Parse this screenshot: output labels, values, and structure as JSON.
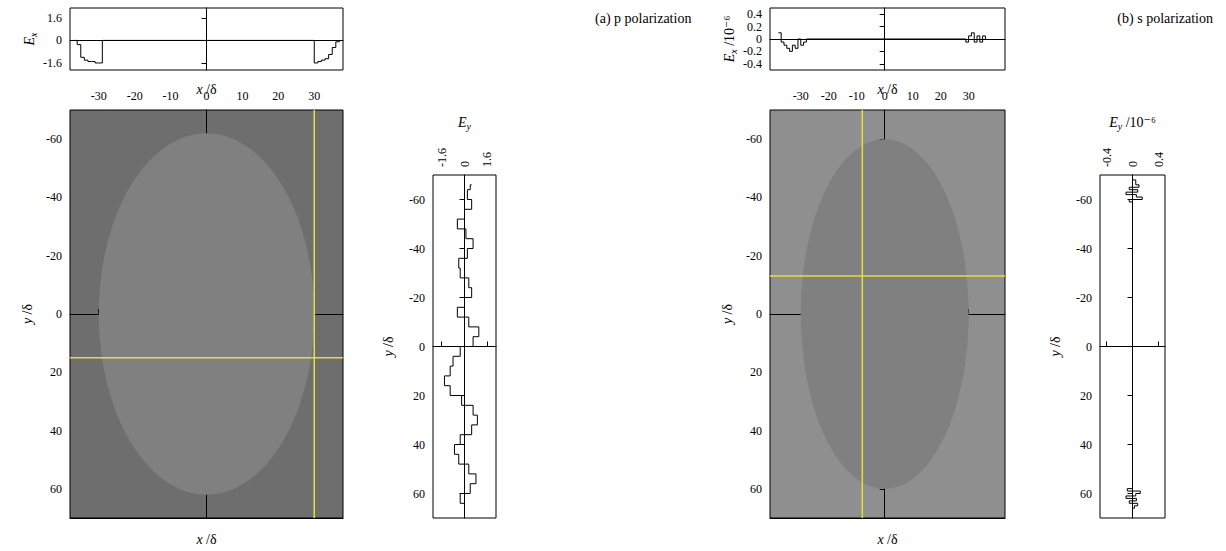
{
  "chart_data": [
    {
      "type": "line",
      "x_label": "x /δ",
      "y_label": "Ex",
      "line_style": "step",
      "tick_labels": "y",
      "x": [
        -37,
        -36,
        -35,
        -34,
        -33,
        -32,
        -31,
        -30,
        -29,
        29,
        30,
        31,
        32,
        33,
        34,
        35,
        36,
        37
      ],
      "values": [
        0,
        -0.3,
        -1.2,
        -1.4,
        -1.5,
        -1.5,
        -1.6,
        -1.6,
        0,
        0,
        -1.6,
        -1.5,
        -1.4,
        -1.3,
        -1.0,
        -0.5,
        -0.1,
        0
      ],
      "xlim": [
        -38,
        38
      ],
      "ylim": [
        -2.1,
        2.3
      ],
      "yticks": [
        -1.6,
        0,
        1.6
      ]
    },
    {
      "type": "field_map",
      "title": "(a) p polarization",
      "x_label": "x /δ",
      "y_label": "y /δ",
      "color": "#808080",
      "xlim": [
        -38,
        38
      ],
      "ylim": [
        -70,
        70
      ],
      "xticks": [
        -30,
        -20,
        -10,
        0,
        10,
        20,
        30
      ],
      "yticks": [
        -60,
        -40,
        -20,
        0,
        20,
        40,
        60
      ],
      "ellipse": {
        "center": [
          0,
          0
        ],
        "semi_axes": [
          30,
          62
        ]
      },
      "crosshair": {
        "x": 30,
        "y": 15
      }
    },
    {
      "type": "line",
      "x_label": "Ey",
      "y_label": "y /δ",
      "line_style": "step",
      "y": [
        -66,
        -64,
        -60,
        -56,
        -52,
        -48,
        -44,
        -40,
        -36,
        -32,
        -28,
        -24,
        -20,
        -16,
        -12,
        -8,
        -4,
        0,
        4,
        8,
        12,
        16,
        20,
        24,
        28,
        32,
        36,
        40,
        44,
        48,
        52,
        56,
        60,
        64,
        66
      ],
      "values": [
        0.5,
        0.4,
        0.2,
        0.5,
        0,
        -0.5,
        0.1,
        0.6,
        0.2,
        -0.4,
        -0.3,
        0.3,
        0.5,
        0,
        -0.5,
        0.3,
        1.0,
        0.6,
        -0.3,
        -0.8,
        -1.0,
        -1.4,
        -1.0,
        -0.2,
        0.6,
        0.9,
        0.5,
        -0.3,
        -0.7,
        -0.4,
        0.3,
        0.8,
        0.4,
        -0.3,
        0
      ],
      "xlim": [
        -2.2,
        2.2
      ],
      "ylim": [
        -70,
        70
      ],
      "xticks": [
        -1.6,
        0,
        1.6
      ],
      "yticks": [
        -60,
        -40,
        -20,
        0,
        20,
        40,
        60
      ]
    },
    {
      "type": "line",
      "x_label": "x /δ",
      "y_label": "Ex /10⁻⁶",
      "line_style": "step",
      "tick_labels": "y",
      "x": [
        -38,
        -37,
        -36,
        -35,
        -34,
        -33,
        -32,
        -31,
        -30,
        -29,
        -28,
        28,
        29,
        30,
        31,
        32,
        33,
        34,
        35,
        36
      ],
      "values": [
        0.1,
        -0.05,
        -0.1,
        -0.15,
        -0.2,
        -0.1,
        -0.15,
        0,
        -0.1,
        -0.05,
        0,
        0,
        -0.05,
        0.05,
        0.1,
        -0.05,
        0.05,
        -0.05,
        0.05,
        0
      ],
      "xlim": [
        -41,
        43
      ],
      "ylim": [
        -0.5,
        0.5
      ],
      "yticks": [
        -0.4,
        -0.2,
        0,
        0.2,
        0.4
      ]
    },
    {
      "type": "field_map",
      "title": "(b) s polarization",
      "x_label": "x /δ",
      "y_label": "y /δ",
      "color": "#808080",
      "xlim": [
        -41,
        43
      ],
      "ylim": [
        -70,
        70
      ],
      "xticks": [
        -30,
        -20,
        -10,
        0,
        10,
        20,
        30
      ],
      "yticks": [
        -60,
        -40,
        -20,
        0,
        20,
        40,
        60
      ],
      "ellipse": {
        "center": [
          0,
          0
        ],
        "semi_axes": [
          30,
          60
        ]
      },
      "crosshair": {
        "x": -8,
        "y": -13
      }
    },
    {
      "type": "line",
      "x_label": "Ey /10⁻⁶",
      "y_label": "y /δ",
      "line_style": "step",
      "y": [
        -68,
        -66,
        -65,
        -64,
        -63,
        -62,
        -61,
        -60,
        -59,
        -58,
        58,
        59,
        60,
        61,
        62,
        63,
        64,
        65,
        66,
        67
      ],
      "values": [
        0,
        0.05,
        0.1,
        -0.05,
        0.08,
        -0.1,
        0.06,
        0.15,
        -0.05,
        0,
        0,
        -0.08,
        0.12,
        0.05,
        -0.1,
        0.06,
        -0.05,
        0.08,
        0.03,
        0
      ],
      "xlim": [
        -0.5,
        0.5
      ],
      "ylim": [
        -70,
        70
      ],
      "xticks": [
        -0.4,
        0,
        0.4
      ],
      "yticks": [
        -60,
        -40,
        -20,
        0,
        20,
        40,
        60
      ]
    }
  ]
}
